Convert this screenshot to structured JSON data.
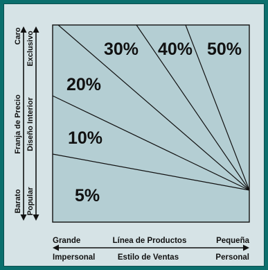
{
  "diagram": {
    "percent_labels": [
      "5%",
      "10%",
      "20%",
      "30%",
      "40%",
      "50%"
    ],
    "x_axis": {
      "row1": {
        "left": "Grande",
        "center": "Línea de Productos",
        "right": "Pequeña"
      },
      "row2": {
        "left": "Impersonal",
        "center": "Estilo de Ventas",
        "right": "Personal"
      }
    },
    "y_axis": {
      "outer": {
        "bottom": "Barato",
        "center": "Franja de Precio",
        "top": "Caro"
      },
      "inner": {
        "bottom": "Popular",
        "center": "Diseño Interior",
        "top": "Exclusivo"
      }
    },
    "colors": {
      "background": "#0b6f6d",
      "panel": "#d6e3e6",
      "plot_area": "#b4ced3",
      "lines": "#111111"
    }
  }
}
